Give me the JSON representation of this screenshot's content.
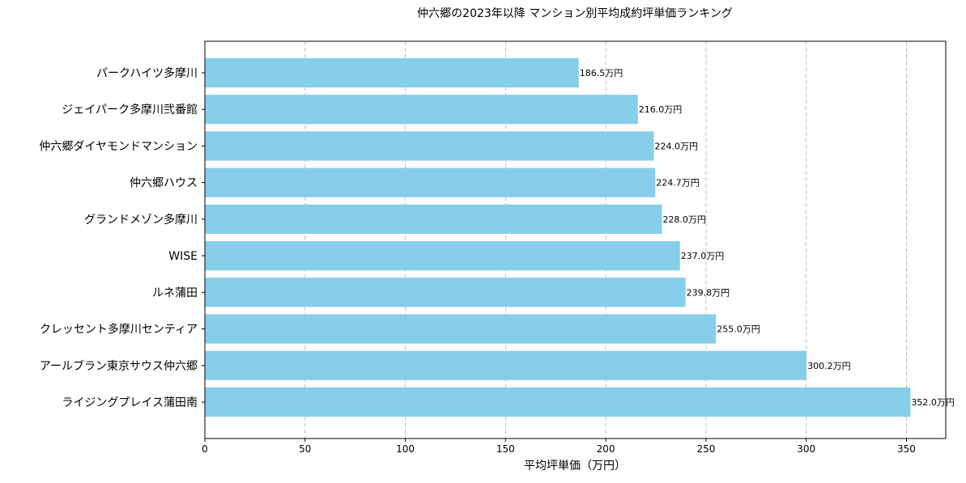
{
  "chart_data": {
    "type": "bar",
    "orientation": "horizontal",
    "title": "仲六郷の2023年以降 マンション別平均成約坪単価ランキング",
    "xlabel": "平均坪単価（万円）",
    "ylabel": "",
    "categories": [
      "パークハイツ多摩川",
      "ジェイパーク多摩川弐番館",
      "仲六郷ダイヤモンドマンション",
      "仲六郷ハウス",
      "グランドメゾン多摩川",
      "WISE",
      "ルネ蒲田",
      "クレッセント多摩川センティア",
      "アールブラン東京サウス仲六郷",
      "ライジングプレイス蒲田南"
    ],
    "values": [
      186.5,
      216.0,
      224.0,
      224.7,
      228.0,
      237.0,
      239.8,
      255.0,
      300.2,
      352.0
    ],
    "data_labels": [
      "186.5万円",
      "216.0万円",
      "224.0万円",
      "224.7万円",
      "228.0万円",
      "237.0万円",
      "239.8万円",
      "255.0万円",
      "300.2万円",
      "352.0万円"
    ],
    "xlim": [
      0,
      369.6
    ],
    "xticks": [
      0,
      50,
      100,
      150,
      200,
      250,
      300,
      350
    ],
    "grid": "x-dashed",
    "bar_color": "#87ceeb"
  }
}
